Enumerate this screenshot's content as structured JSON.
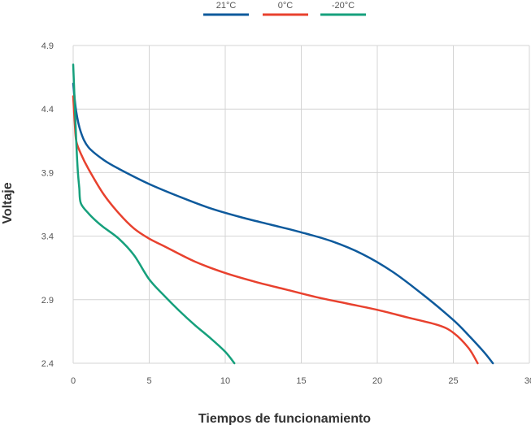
{
  "chart_data": {
    "type": "line",
    "title": "",
    "xlabel": "Tiempos de funcionamiento",
    "ylabel": "Voltaje",
    "xlim": [
      0,
      30
    ],
    "ylim": [
      2.4,
      4.9
    ],
    "x_ticks": [
      "0",
      "5",
      "10",
      "15",
      "20",
      "25",
      "30"
    ],
    "y_ticks": [
      "2.4",
      "2.9",
      "3.4",
      "3.9",
      "4.4",
      "4.9"
    ],
    "grid": true,
    "legend_position": "top-center",
    "series": [
      {
        "name": "21°C",
        "color": "#0e5a9c",
        "points": [
          [
            0,
            4.6
          ],
          [
            0.2,
            4.38
          ],
          [
            0.5,
            4.22
          ],
          [
            1,
            4.1
          ],
          [
            2,
            4.0
          ],
          [
            3,
            3.93
          ],
          [
            5,
            3.81
          ],
          [
            7,
            3.71
          ],
          [
            9,
            3.62
          ],
          [
            11,
            3.55
          ],
          [
            13,
            3.49
          ],
          [
            15,
            3.43
          ],
          [
            17,
            3.36
          ],
          [
            19,
            3.26
          ],
          [
            21,
            3.12
          ],
          [
            23,
            2.94
          ],
          [
            25,
            2.74
          ],
          [
            26,
            2.62
          ],
          [
            27,
            2.49
          ],
          [
            27.6,
            2.4
          ]
        ]
      },
      {
        "name": "0°C",
        "color": "#e8412e",
        "points": [
          [
            0,
            4.5
          ],
          [
            0.1,
            4.3
          ],
          [
            0.2,
            4.15
          ],
          [
            0.5,
            4.05
          ],
          [
            1,
            3.93
          ],
          [
            2,
            3.73
          ],
          [
            3,
            3.58
          ],
          [
            4,
            3.46
          ],
          [
            5,
            3.38
          ],
          [
            6,
            3.32
          ],
          [
            8,
            3.2
          ],
          [
            10,
            3.11
          ],
          [
            12,
            3.04
          ],
          [
            14,
            2.98
          ],
          [
            16,
            2.92
          ],
          [
            18,
            2.87
          ],
          [
            20,
            2.82
          ],
          [
            22,
            2.76
          ],
          [
            24,
            2.7
          ],
          [
            25,
            2.64
          ],
          [
            26,
            2.52
          ],
          [
            26.6,
            2.4
          ]
        ]
      },
      {
        "name": "-20°C",
        "color": "#16a07c",
        "points": [
          [
            0,
            4.75
          ],
          [
            0.1,
            4.45
          ],
          [
            0.2,
            4.15
          ],
          [
            0.3,
            3.92
          ],
          [
            0.4,
            3.78
          ],
          [
            0.5,
            3.66
          ],
          [
            1,
            3.58
          ],
          [
            1.5,
            3.52
          ],
          [
            2,
            3.47
          ],
          [
            3,
            3.38
          ],
          [
            4,
            3.25
          ],
          [
            5,
            3.06
          ],
          [
            6,
            2.93
          ],
          [
            7,
            2.81
          ],
          [
            8,
            2.7
          ],
          [
            9,
            2.6
          ],
          [
            10,
            2.49
          ],
          [
            10.6,
            2.4
          ]
        ]
      }
    ]
  }
}
